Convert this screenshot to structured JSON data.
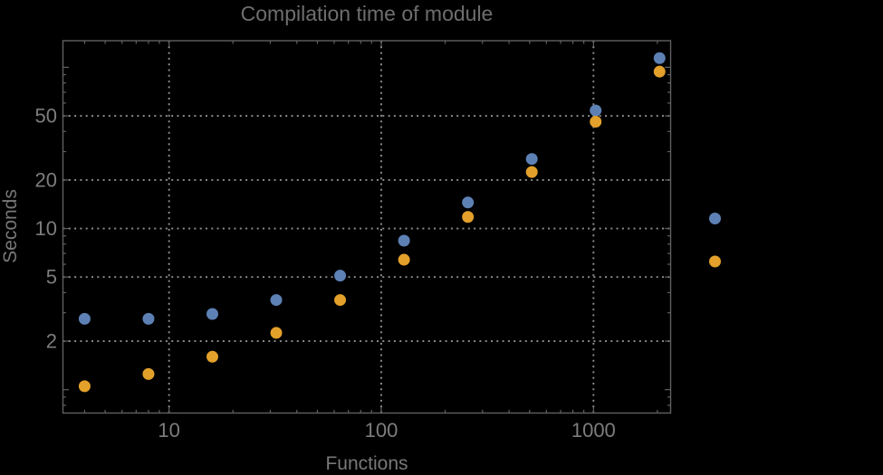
{
  "page": {
    "background_color": "#000000"
  },
  "chart_data": {
    "type": "scatter",
    "title": "Compilation time of module",
    "xlabel": "Functions",
    "ylabel": "Seconds",
    "x_scale": "log10",
    "y_scale": "log10",
    "x_log_range": [
      0.5,
      3.3635
    ],
    "y_log_range": [
      -0.145,
      2.165
    ],
    "x": [
      4,
      8,
      16,
      32,
      64,
      128,
      256,
      512,
      1024,
      2048
    ],
    "series": [
      {
        "name": "blue",
        "color": "#5E81B5",
        "values": [
          2.75,
          2.75,
          2.95,
          3.6,
          5.1,
          8.4,
          14.5,
          27,
          54,
          114
        ]
      },
      {
        "name": "orange",
        "color": "#E3A02A",
        "values": [
          1.05,
          1.25,
          1.6,
          2.25,
          3.6,
          6.4,
          11.8,
          22.4,
          46,
          94
        ]
      }
    ],
    "x_tick_labels": [
      "10",
      "100",
      "1000"
    ],
    "x_tick_values": [
      10,
      100,
      1000
    ],
    "y_tick_labels": [
      "2",
      "5",
      "10",
      "20",
      "50"
    ],
    "y_tick_values": [
      2,
      5,
      10,
      20,
      50
    ],
    "x_grid_values": [
      10,
      100,
      1000
    ],
    "y_grid_values": [
      2,
      5,
      10,
      20,
      50
    ],
    "grid_style": "dotted",
    "legend": {
      "position": "outside-right",
      "entries": [
        {
          "marker_color": "#5E81B5",
          "label": ""
        },
        {
          "marker_color": "#E3A02A",
          "label": ""
        }
      ]
    },
    "style": {
      "frame_color": "#606060",
      "grid_color": "#8f8f8f",
      "tick_label_color": "#7d7d7d",
      "title_color": "#6e6e6e",
      "marker_radius_px": 6.5
    }
  }
}
